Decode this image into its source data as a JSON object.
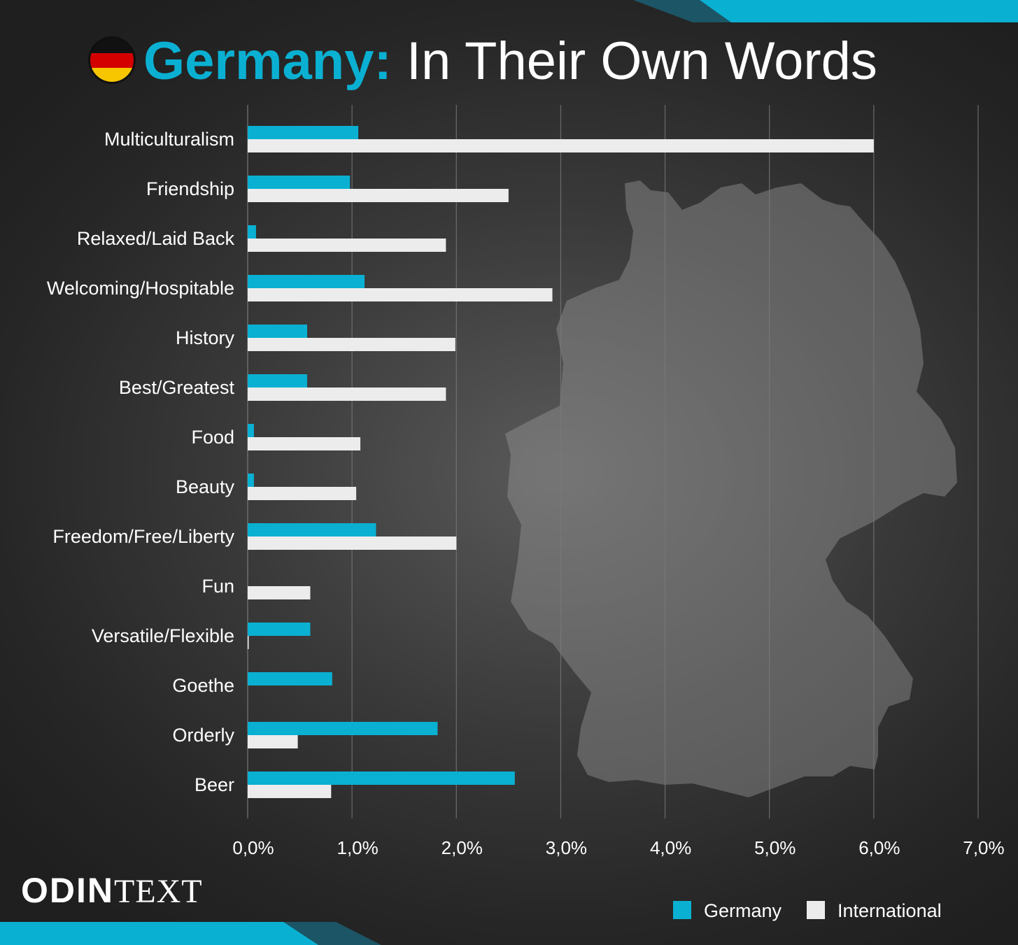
{
  "header": {
    "title_highlight": "Germany:",
    "title_rest": " In Their Own Words"
  },
  "brand": {
    "logo_bold": "ODIN",
    "logo_light": "TEXT"
  },
  "colors": {
    "germany": "#0ab0d2",
    "international": "#ececec",
    "flag_black": "#111111",
    "flag_red": "#d40000",
    "flag_gold": "#f7c600"
  },
  "chart_data": {
    "type": "bar",
    "orientation": "horizontal",
    "categories": [
      "Multiculturalism",
      "Friendship",
      "Relaxed/Laid Back",
      "Welcoming/Hospitable",
      "History",
      "Best/Greatest",
      "Food",
      "Beauty",
      "Freedom/Free/Liberty",
      "Fun",
      "Versatile/Flexible",
      "Goethe",
      "Orderly",
      "Beer"
    ],
    "series": [
      {
        "name": "Germany",
        "values": [
          1.06,
          0.98,
          0.08,
          1.12,
          0.57,
          0.57,
          0.06,
          0.06,
          1.23,
          0.0,
          0.6,
          0.81,
          1.82,
          2.56
        ]
      },
      {
        "name": "International",
        "values": [
          6.0,
          2.5,
          1.9,
          2.92,
          1.99,
          1.9,
          1.08,
          1.04,
          2.0,
          0.6,
          0.01,
          0.0,
          0.48,
          0.8
        ]
      }
    ],
    "xlim": [
      0,
      7
    ],
    "xticks": [
      0,
      1,
      2,
      3,
      4,
      5,
      6,
      7
    ],
    "xtick_labels": [
      "0,0%",
      "1,0%",
      "2,0%",
      "3,0%",
      "4,0%",
      "5,0%",
      "6,0%",
      "7,0%"
    ],
    "grid": "vertical",
    "legend": "bottom-right",
    "xlabel": "",
    "ylabel": ""
  }
}
